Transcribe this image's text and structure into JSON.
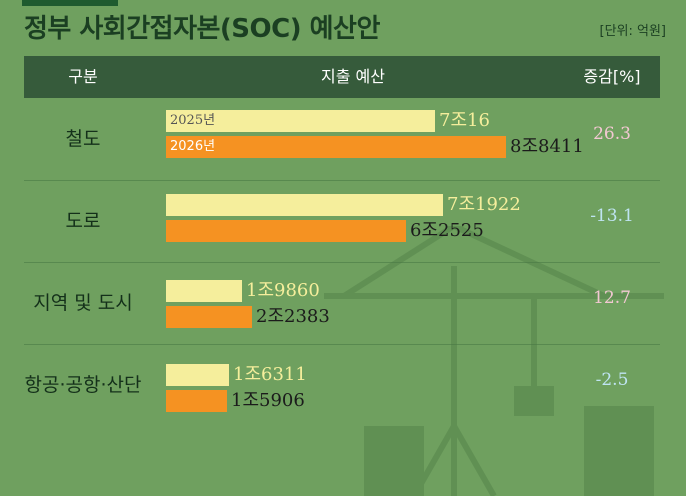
{
  "title": "정부 사회간접자본(SOC) 예산안",
  "unit": "[단위: 억원]",
  "colors": {
    "y2025": "#f5ee9c",
    "y2026": "#f59222",
    "header": "#365b3b",
    "background": "#6fa05f",
    "positive": "#f2c8d2",
    "negative": "#bfe4f2"
  },
  "chart_data": {
    "type": "bar",
    "orientation": "horizontal",
    "headers": {
      "category": "구분",
      "budget": "지출 예산",
      "change": "증감[%]"
    },
    "series": [
      {
        "name": "2025년",
        "display": [
          "7조16",
          "7조1922",
          "1조9860",
          "1조6311"
        ],
        "values": [
          70016,
          71922,
          19860,
          16311
        ]
      },
      {
        "name": "2026년",
        "display": [
          "8조8411",
          "6조2525",
          "2조2383",
          "1조5906"
        ],
        "values": [
          88411,
          62525,
          22383,
          15906
        ]
      }
    ],
    "categories": [
      "철도",
      "도로",
      "지역 및 도시",
      "항공·공항·산단"
    ],
    "change_pct": [
      "26.3",
      "-13.1",
      "12.7",
      "-2.5"
    ]
  }
}
